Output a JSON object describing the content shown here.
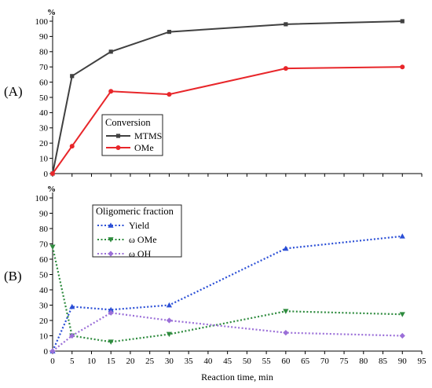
{
  "chart_data": [
    {
      "type": "line",
      "panel_label": "(A)",
      "y_unit": "%",
      "x": [
        0,
        5,
        15,
        30,
        60,
        90
      ],
      "xlim": [
        0,
        95
      ],
      "ylim": [
        0,
        100
      ],
      "yticks": [
        0,
        10,
        20,
        30,
        40,
        50,
        60,
        70,
        80,
        90,
        100
      ],
      "legend": {
        "title": "Conversion",
        "placement": "center-left"
      },
      "series": [
        {
          "name": "MTMS",
          "color": "#404040",
          "marker": "square",
          "style": "solid",
          "values": [
            0,
            64,
            80,
            93,
            98,
            100
          ]
        },
        {
          "name": "OMe",
          "color": "#e8262a",
          "marker": "circle",
          "style": "solid",
          "values": [
            0,
            18,
            54,
            52,
            69,
            70
          ]
        }
      ]
    },
    {
      "type": "line",
      "panel_label": "(B)",
      "y_unit": "%",
      "x": [
        0,
        5,
        15,
        30,
        60,
        90
      ],
      "xlim": [
        0,
        95
      ],
      "ylim": [
        0,
        100
      ],
      "xticks": [
        0,
        5,
        10,
        15,
        20,
        25,
        30,
        35,
        40,
        45,
        50,
        55,
        60,
        65,
        70,
        75,
        80,
        85,
        90,
        95
      ],
      "yticks": [
        0,
        10,
        20,
        30,
        40,
        50,
        60,
        70,
        80,
        90,
        100
      ],
      "xlabel": "Reaction time, min",
      "legend": {
        "title": "Oligomeric fraction",
        "placement": "top-left"
      },
      "series": [
        {
          "name": "Yield",
          "color": "#2b4fd6",
          "marker": "triangle-up",
          "style": "dotted",
          "values": [
            0,
            29,
            27,
            30,
            67,
            75
          ]
        },
        {
          "name": "ω OMe",
          "color": "#2e8b3e",
          "marker": "triangle-down",
          "style": "dotted",
          "values": [
            68,
            10,
            6,
            11,
            26,
            24
          ]
        },
        {
          "name": "ω OH",
          "color": "#9b6fd8",
          "marker": "diamond",
          "style": "dotted",
          "values": [
            0,
            10,
            25,
            20,
            12,
            10
          ]
        }
      ]
    }
  ]
}
